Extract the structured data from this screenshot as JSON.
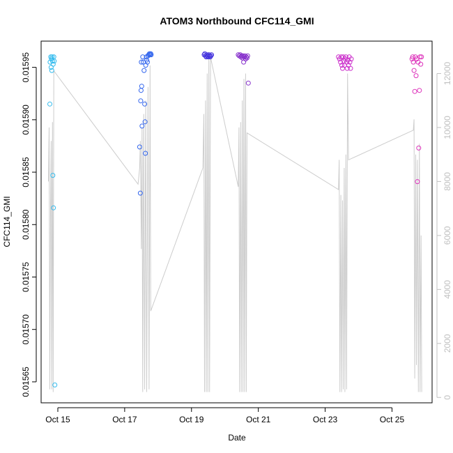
{
  "chart_data": {
    "type": "scatter",
    "title": "ATOM3 Northbound CFC114_GMI",
    "xlabel": "Date",
    "ylabel": "CFC114_GMI",
    "xlim": [
      14.5,
      26.2
    ],
    "ylim": [
      0.01563,
      0.015975
    ],
    "y2lim": [
      -200,
      13200
    ],
    "x_ticks": [
      {
        "value": 15,
        "label": "Oct 15"
      },
      {
        "value": 17,
        "label": "Oct 17"
      },
      {
        "value": 19,
        "label": "Oct 19"
      },
      {
        "value": 21,
        "label": "Oct 21"
      },
      {
        "value": 23,
        "label": "Oct 23"
      },
      {
        "value": 25,
        "label": "Oct 25"
      }
    ],
    "y_ticks": [
      {
        "value": 0.01565,
        "label": "0.01565"
      },
      {
        "value": 0.0157,
        "label": "0.01570"
      },
      {
        "value": 0.01575,
        "label": "0.01575"
      },
      {
        "value": 0.0158,
        "label": "0.01580"
      },
      {
        "value": 0.01585,
        "label": "0.01585"
      },
      {
        "value": 0.0159,
        "label": "0.01590"
      },
      {
        "value": 0.01595,
        "label": "0.01595"
      }
    ],
    "y2_ticks": [
      {
        "value": 0,
        "label": "0"
      },
      {
        "value": 2000,
        "label": "2000"
      },
      {
        "value": 4000,
        "label": "4000"
      },
      {
        "value": 6000,
        "label": "6000"
      },
      {
        "value": 8000,
        "label": "8000"
      },
      {
        "value": 10000,
        "label": "10000"
      },
      {
        "value": 12000,
        "label": "12000"
      }
    ],
    "colors": {
      "axis": "#000000",
      "altitude_line": "#cccccc",
      "right_axis": "#c0c0c0"
    },
    "points": [
      {
        "x": 14.76,
        "y": 0.015915,
        "color": "#33bbee"
      },
      {
        "x": 14.77,
        "y": 0.015955,
        "color": "#33bbee"
      },
      {
        "x": 14.79,
        "y": 0.01596,
        "color": "#33bbee"
      },
      {
        "x": 14.8,
        "y": 0.01595,
        "color": "#33bbee"
      },
      {
        "x": 14.81,
        "y": 0.015958,
        "color": "#33bbee"
      },
      {
        "x": 14.82,
        "y": 0.015947,
        "color": "#33bbee"
      },
      {
        "x": 14.83,
        "y": 0.01596,
        "color": "#33bbee"
      },
      {
        "x": 14.84,
        "y": 0.015956,
        "color": "#33bbee"
      },
      {
        "x": 14.85,
        "y": 0.015847,
        "color": "#33bbee"
      },
      {
        "x": 14.86,
        "y": 0.015953,
        "color": "#33bbee"
      },
      {
        "x": 14.87,
        "y": 0.015816,
        "color": "#33bbee"
      },
      {
        "x": 14.88,
        "y": 0.01596,
        "color": "#33bbee"
      },
      {
        "x": 14.89,
        "y": 0.015956,
        "color": "#33bbee"
      },
      {
        "x": 14.91,
        "y": 0.015647,
        "color": "#33bbee"
      },
      {
        "x": 17.45,
        "y": 0.015874,
        "color": "#3366ee"
      },
      {
        "x": 17.47,
        "y": 0.01583,
        "color": "#3366ee"
      },
      {
        "x": 17.48,
        "y": 0.015918,
        "color": "#3366ee"
      },
      {
        "x": 17.49,
        "y": 0.015928,
        "color": "#3366ee"
      },
      {
        "x": 17.5,
        "y": 0.015955,
        "color": "#3366ee"
      },
      {
        "x": 17.51,
        "y": 0.015932,
        "color": "#3366ee"
      },
      {
        "x": 17.52,
        "y": 0.015894,
        "color": "#3366ee"
      },
      {
        "x": 17.54,
        "y": 0.01596,
        "color": "#3366ee"
      },
      {
        "x": 17.56,
        "y": 0.015955,
        "color": "#3366ee"
      },
      {
        "x": 17.58,
        "y": 0.015947,
        "color": "#3366ee"
      },
      {
        "x": 17.6,
        "y": 0.015915,
        "color": "#3366ee"
      },
      {
        "x": 17.61,
        "y": 0.015898,
        "color": "#3366ee"
      },
      {
        "x": 17.62,
        "y": 0.015868,
        "color": "#3366ee"
      },
      {
        "x": 17.63,
        "y": 0.015952,
        "color": "#3366ee"
      },
      {
        "x": 17.65,
        "y": 0.01596,
        "color": "#3366ee"
      },
      {
        "x": 17.66,
        "y": 0.015957,
        "color": "#3366ee"
      },
      {
        "x": 17.68,
        "y": 0.015955,
        "color": "#3366ee"
      },
      {
        "x": 17.7,
        "y": 0.015961,
        "color": "#3366ee"
      },
      {
        "x": 17.72,
        "y": 0.015962,
        "color": "#3366ee"
      },
      {
        "x": 17.74,
        "y": 0.015963,
        "color": "#3366ee"
      },
      {
        "x": 17.76,
        "y": 0.015962,
        "color": "#3366ee"
      },
      {
        "x": 17.78,
        "y": 0.015963,
        "color": "#3366ee"
      },
      {
        "x": 17.79,
        "y": 0.015962,
        "color": "#3366ee"
      },
      {
        "x": 19.38,
        "y": 0.015962,
        "color": "#4433dd"
      },
      {
        "x": 19.4,
        "y": 0.015963,
        "color": "#4433dd"
      },
      {
        "x": 19.42,
        "y": 0.015961,
        "color": "#4433dd"
      },
      {
        "x": 19.44,
        "y": 0.01596,
        "color": "#4433dd"
      },
      {
        "x": 19.46,
        "y": 0.015962,
        "color": "#4433dd"
      },
      {
        "x": 19.48,
        "y": 0.015961,
        "color": "#4433dd"
      },
      {
        "x": 19.5,
        "y": 0.01596,
        "color": "#4433dd"
      },
      {
        "x": 19.52,
        "y": 0.015962,
        "color": "#4433dd"
      },
      {
        "x": 19.54,
        "y": 0.015961,
        "color": "#4433dd"
      },
      {
        "x": 19.56,
        "y": 0.01596,
        "color": "#4433dd"
      },
      {
        "x": 19.58,
        "y": 0.015961,
        "color": "#4433dd"
      },
      {
        "x": 19.6,
        "y": 0.015962,
        "color": "#4433dd"
      },
      {
        "x": 20.4,
        "y": 0.015962,
        "color": "#8833cc"
      },
      {
        "x": 20.43,
        "y": 0.015961,
        "color": "#8833cc"
      },
      {
        "x": 20.46,
        "y": 0.015962,
        "color": "#8833cc"
      },
      {
        "x": 20.48,
        "y": 0.01596,
        "color": "#8833cc"
      },
      {
        "x": 20.5,
        "y": 0.015961,
        "color": "#8833cc"
      },
      {
        "x": 20.52,
        "y": 0.015959,
        "color": "#8833cc"
      },
      {
        "x": 20.54,
        "y": 0.015961,
        "color": "#8833cc"
      },
      {
        "x": 20.56,
        "y": 0.015955,
        "color": "#8833cc"
      },
      {
        "x": 20.58,
        "y": 0.01596,
        "color": "#8833cc"
      },
      {
        "x": 20.6,
        "y": 0.015961,
        "color": "#8833cc"
      },
      {
        "x": 20.62,
        "y": 0.015958,
        "color": "#8833cc"
      },
      {
        "x": 20.64,
        "y": 0.01596,
        "color": "#8833cc"
      },
      {
        "x": 20.66,
        "y": 0.015959,
        "color": "#8833cc"
      },
      {
        "x": 20.68,
        "y": 0.015961,
        "color": "#8833cc"
      },
      {
        "x": 20.7,
        "y": 0.015935,
        "color": "#8833cc"
      },
      {
        "x": 23.4,
        "y": 0.01596,
        "color": "#cc33cc"
      },
      {
        "x": 23.43,
        "y": 0.015958,
        "color": "#cc33cc"
      },
      {
        "x": 23.46,
        "y": 0.015955,
        "color": "#cc33cc"
      },
      {
        "x": 23.48,
        "y": 0.01596,
        "color": "#cc33cc"
      },
      {
        "x": 23.5,
        "y": 0.015952,
        "color": "#cc33cc"
      },
      {
        "x": 23.52,
        "y": 0.015949,
        "color": "#cc33cc"
      },
      {
        "x": 23.54,
        "y": 0.01596,
        "color": "#cc33cc"
      },
      {
        "x": 23.56,
        "y": 0.015956,
        "color": "#cc33cc"
      },
      {
        "x": 23.58,
        "y": 0.015952,
        "color": "#cc33cc"
      },
      {
        "x": 23.6,
        "y": 0.015958,
        "color": "#cc33cc"
      },
      {
        "x": 23.62,
        "y": 0.01596,
        "color": "#cc33cc"
      },
      {
        "x": 23.64,
        "y": 0.015955,
        "color": "#cc33cc"
      },
      {
        "x": 23.66,
        "y": 0.015949,
        "color": "#cc33cc"
      },
      {
        "x": 23.68,
        "y": 0.015957,
        "color": "#cc33cc"
      },
      {
        "x": 23.7,
        "y": 0.015952,
        "color": "#cc33cc"
      },
      {
        "x": 23.72,
        "y": 0.01596,
        "color": "#cc33cc"
      },
      {
        "x": 23.74,
        "y": 0.015955,
        "color": "#cc33cc"
      },
      {
        "x": 23.76,
        "y": 0.015949,
        "color": "#cc33cc"
      },
      {
        "x": 23.78,
        "y": 0.015958,
        "color": "#cc33cc"
      },
      {
        "x": 25.6,
        "y": 0.015958,
        "color": "#dd33bb"
      },
      {
        "x": 25.62,
        "y": 0.01596,
        "color": "#dd33bb"
      },
      {
        "x": 25.64,
        "y": 0.015955,
        "color": "#dd33bb"
      },
      {
        "x": 25.66,
        "y": 0.015947,
        "color": "#dd33bb"
      },
      {
        "x": 25.68,
        "y": 0.015927,
        "color": "#dd33bb"
      },
      {
        "x": 25.7,
        "y": 0.01596,
        "color": "#dd33bb"
      },
      {
        "x": 25.72,
        "y": 0.015942,
        "color": "#dd33bb"
      },
      {
        "x": 25.74,
        "y": 0.015958,
        "color": "#dd33bb"
      },
      {
        "x": 25.76,
        "y": 0.015841,
        "color": "#dd33bb"
      },
      {
        "x": 25.78,
        "y": 0.015955,
        "color": "#dd33bb"
      },
      {
        "x": 25.8,
        "y": 0.015873,
        "color": "#dd33bb"
      },
      {
        "x": 25.82,
        "y": 0.015928,
        "color": "#dd33bb"
      },
      {
        "x": 25.84,
        "y": 0.01596,
        "color": "#dd33bb"
      },
      {
        "x": 25.86,
        "y": 0.015953,
        "color": "#dd33bb"
      },
      {
        "x": 25.88,
        "y": 0.01596,
        "color": "#dd33bb"
      }
    ],
    "altitude_line": [
      [
        14.72,
        8000
      ],
      [
        14.74,
        10000
      ],
      [
        14.76,
        300
      ],
      [
        14.78,
        6500
      ],
      [
        14.8,
        9500
      ],
      [
        14.82,
        300
      ],
      [
        14.84,
        10200
      ],
      [
        14.86,
        200
      ],
      [
        14.88,
        12100
      ],
      [
        17.4,
        7900
      ],
      [
        17.45,
        8500
      ],
      [
        17.47,
        9500
      ],
      [
        17.5,
        5500
      ],
      [
        17.52,
        10000
      ],
      [
        17.54,
        200
      ],
      [
        17.57,
        10500
      ],
      [
        17.6,
        300
      ],
      [
        17.63,
        11000
      ],
      [
        17.66,
        200
      ],
      [
        17.7,
        11500
      ],
      [
        17.73,
        300
      ],
      [
        17.76,
        12300
      ],
      [
        17.78,
        3200
      ],
      [
        19.34,
        8500
      ],
      [
        19.37,
        10500
      ],
      [
        19.39,
        200
      ],
      [
        19.42,
        11000
      ],
      [
        19.44,
        200
      ],
      [
        19.47,
        12000
      ],
      [
        19.49,
        200
      ],
      [
        19.52,
        12800
      ],
      [
        19.54,
        200
      ],
      [
        19.57,
        12600
      ],
      [
        20.4,
        7800
      ],
      [
        20.42,
        10000
      ],
      [
        20.44,
        200
      ],
      [
        20.47,
        10200
      ],
      [
        20.49,
        200
      ],
      [
        20.52,
        11000
      ],
      [
        20.54,
        200
      ],
      [
        20.57,
        11800
      ],
      [
        20.59,
        200
      ],
      [
        20.62,
        12000
      ],
      [
        20.64,
        200
      ],
      [
        20.66,
        9800
      ],
      [
        23.4,
        7700
      ],
      [
        23.42,
        8800
      ],
      [
        23.44,
        200
      ],
      [
        23.47,
        7500
      ],
      [
        23.49,
        200
      ],
      [
        23.52,
        7300
      ],
      [
        23.54,
        300
      ],
      [
        23.57,
        8500
      ],
      [
        23.59,
        200
      ],
      [
        23.62,
        9000
      ],
      [
        23.64,
        300
      ],
      [
        23.67,
        12000
      ],
      [
        23.7,
        8800
      ],
      [
        25.64,
        9900
      ],
      [
        25.66,
        10300
      ],
      [
        25.68,
        700
      ],
      [
        25.71,
        9000
      ],
      [
        25.73,
        1200
      ],
      [
        25.76,
        8800
      ],
      [
        25.79,
        200
      ],
      [
        25.82,
        9400
      ],
      [
        25.84,
        200
      ],
      [
        25.87,
        6000
      ],
      [
        25.89,
        200
      ]
    ]
  }
}
